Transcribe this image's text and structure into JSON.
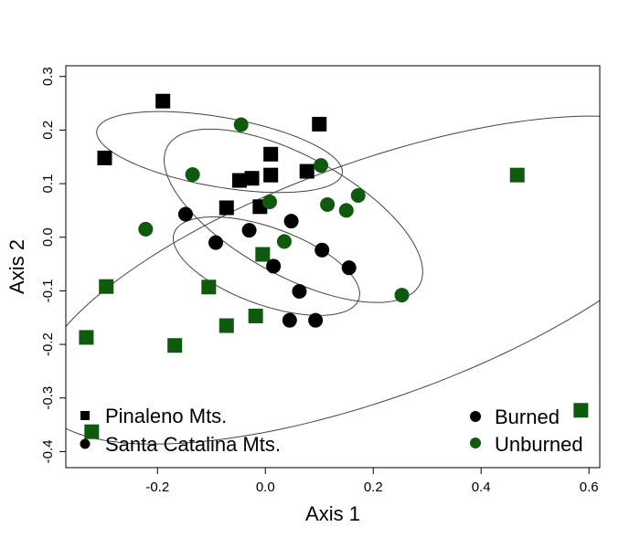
{
  "colors": {
    "burned": "#000000",
    "unburned": "#0f5a0f",
    "axis": "#000000",
    "ellipse": "#444444"
  },
  "chart_data": {
    "type": "scatter",
    "title": "",
    "xlabel": "Axis 1",
    "ylabel": "Axis 2",
    "xlim": [
      -0.37,
      0.62
    ],
    "ylim": [
      -0.43,
      0.32
    ],
    "x_ticks": [
      -0.2,
      0.0,
      0.2,
      0.4,
      0.6
    ],
    "x_tick_labels": [
      "-0.2",
      "0.0",
      "0.2",
      "0.4",
      "0.6"
    ],
    "y_ticks": [
      -0.4,
      -0.3,
      -0.2,
      -0.1,
      0.0,
      0.1,
      0.2,
      0.3
    ],
    "y_tick_labels": [
      "-0.4",
      "-0.3",
      "-0.2",
      "-0.1",
      "0.0",
      "0.1",
      "0.2",
      "0.3"
    ],
    "grid": false,
    "legend_site": {
      "placement": "bottom-left",
      "entries": [
        {
          "label": "Pinaleno Mts.",
          "shape": "square"
        },
        {
          "label": "Santa Catalina Mts.",
          "shape": "circle"
        }
      ]
    },
    "legend_condition": {
      "placement": "bottom-right",
      "entries": [
        {
          "label": "Burned",
          "status": "burned"
        },
        {
          "label": "Unburned",
          "status": "unburned"
        }
      ]
    },
    "series": [
      {
        "site": "Pinaleno Mts.",
        "shape": "square",
        "status": "burned",
        "points": [
          [
            -0.19,
            0.254
          ],
          [
            0.1,
            0.211
          ],
          [
            -0.298,
            0.148
          ],
          [
            0.01,
            0.155
          ],
          [
            0.077,
            0.123
          ],
          [
            -0.048,
            0.106
          ],
          [
            -0.025,
            0.11
          ],
          [
            0.01,
            0.116
          ],
          [
            -0.072,
            0.055
          ],
          [
            -0.01,
            0.057
          ]
        ]
      },
      {
        "site": "Pinaleno Mts.",
        "shape": "square",
        "status": "unburned",
        "points": [
          [
            0.467,
            0.116
          ],
          [
            -0.295,
            -0.092
          ],
          [
            -0.105,
            -0.093
          ],
          [
            -0.005,
            -0.032
          ],
          [
            -0.072,
            -0.165
          ],
          [
            -0.018,
            -0.147
          ],
          [
            -0.168,
            -0.202
          ],
          [
            -0.332,
            -0.187
          ],
          [
            -0.322,
            -0.363
          ],
          [
            0.585,
            -0.323
          ]
        ]
      },
      {
        "site": "Santa Catalina Mts.",
        "shape": "circle",
        "status": "burned",
        "points": [
          [
            -0.148,
            0.043
          ],
          [
            0.048,
            0.03
          ],
          [
            -0.03,
            0.013
          ],
          [
            -0.092,
            -0.01
          ],
          [
            0.105,
            -0.024
          ],
          [
            0.015,
            -0.054
          ],
          [
            0.155,
            -0.057
          ],
          [
            0.063,
            -0.101
          ],
          [
            0.045,
            -0.155
          ],
          [
            0.093,
            -0.155
          ]
        ]
      },
      {
        "site": "Santa Catalina Mts.",
        "shape": "circle",
        "status": "unburned",
        "points": [
          [
            -0.045,
            0.21
          ],
          [
            -0.135,
            0.117
          ],
          [
            0.103,
            0.134
          ],
          [
            0.172,
            0.078
          ],
          [
            0.008,
            0.066
          ],
          [
            0.115,
            0.061
          ],
          [
            0.15,
            0.05
          ],
          [
            -0.222,
            0.015
          ],
          [
            0.035,
            -0.008
          ],
          [
            0.253,
            -0.108
          ]
        ]
      }
    ],
    "ellipses": [
      {
        "group": "Pinaleno Mts. burned",
        "center": [
          -0.085,
          0.159
        ],
        "semi_axes": [
          0.231,
          0.065
        ],
        "rotation_deg": -10
      },
      {
        "group": "Santa Catalina Mts. unburned",
        "center": [
          0.052,
          0.04
        ],
        "semi_axes": [
          0.267,
          0.111
        ],
        "rotation_deg": -29
      },
      {
        "group": "Santa Catalina Mts. burned",
        "center": [
          0.002,
          -0.054
        ],
        "semi_axes": [
          0.182,
          0.072
        ],
        "rotation_deg": -20
      },
      {
        "group": "Pinaleno Mts. unburned",
        "center": [
          0.2,
          -0.08
        ],
        "semi_axes": [
          0.66,
          0.22
        ],
        "rotation_deg": 20
      }
    ]
  }
}
